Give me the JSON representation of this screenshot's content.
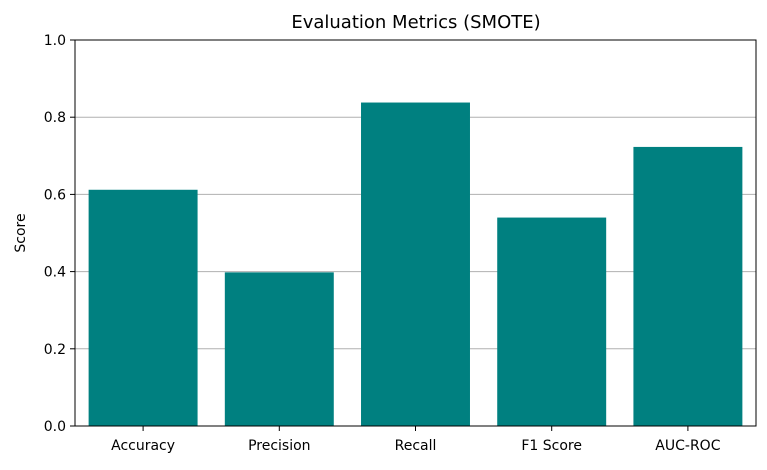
{
  "chart_data": {
    "type": "bar",
    "title": "Evaluation Metrics (SMOTE)",
    "xlabel": "",
    "ylabel": "Score",
    "categories": [
      "Accuracy",
      "Precision",
      "Recall",
      "F1 Score",
      "AUC-ROC"
    ],
    "values": [
      0.612,
      0.398,
      0.838,
      0.54,
      0.723
    ],
    "ylim": [
      0,
      1.0
    ],
    "yticks": [
      "0.0",
      "0.2",
      "0.4",
      "0.6",
      "0.8",
      "1.0"
    ],
    "grid": "y",
    "bar_color": "#008080",
    "grid_color": "#b0b0b0",
    "axis_color": "#000000"
  }
}
